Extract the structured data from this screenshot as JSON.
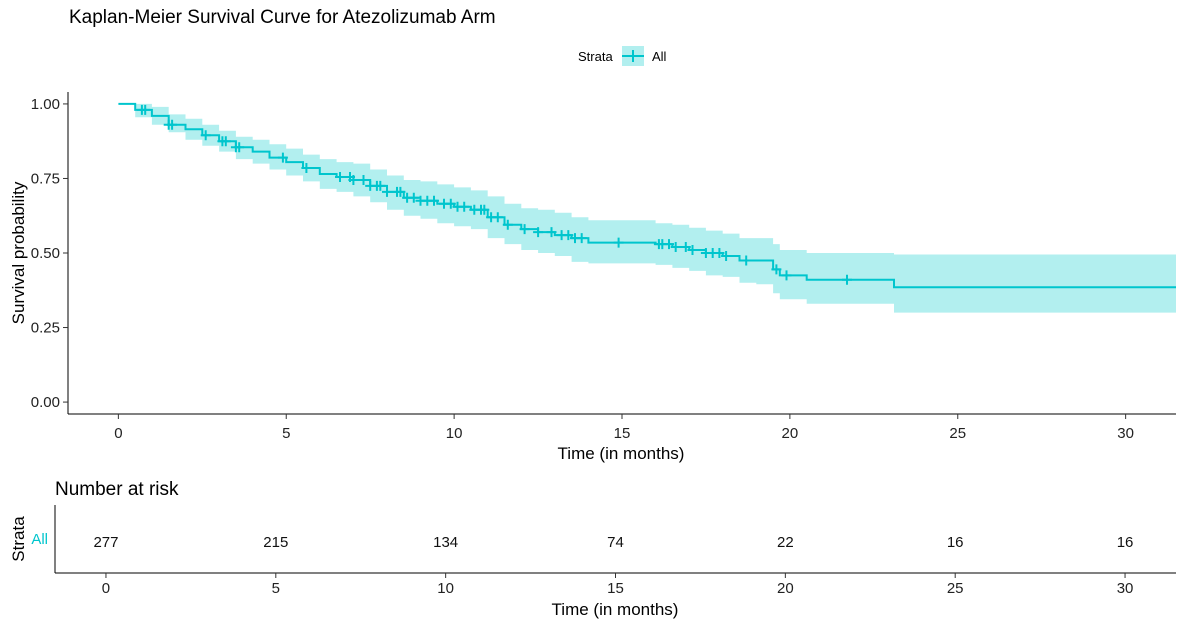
{
  "title": "Kaplan-Meier Survival Curve for Atezolizumab Arm",
  "legend": {
    "title": "Strata",
    "label": "All",
    "placement": "top"
  },
  "colors": {
    "line": "#00C5CD",
    "band": "#B2EFEF",
    "axis": "#000000"
  },
  "chart_data": {
    "type": "line",
    "subtype": "kaplan-meier step",
    "title": "Kaplan-Meier Survival Curve for Atezolizumab Arm",
    "xlabel": "Time (in months)",
    "ylabel": "Survival probability",
    "xlim": [
      -1.5,
      31.5
    ],
    "ylim": [
      -0.04,
      1.04
    ],
    "x_ticks": [
      0,
      5,
      10,
      15,
      20,
      25,
      30
    ],
    "x_tick_labels": [
      "0",
      "5",
      "10",
      "15",
      "20",
      "25",
      "30"
    ],
    "y_ticks": [
      0,
      0.25,
      0.5,
      0.75,
      1.0
    ],
    "y_tick_labels": [
      "0.00",
      "0.25",
      "0.50",
      "0.75",
      "1.00"
    ],
    "grid": false,
    "series": [
      {
        "name": "All",
        "x": [
          0,
          0.5,
          1,
          1.5,
          2,
          2.5,
          3,
          3.5,
          4,
          4.5,
          5,
          5.5,
          6,
          6.5,
          7,
          7.5,
          8,
          8.5,
          9,
          9.5,
          10,
          10.5,
          11,
          11.5,
          12,
          12.5,
          13,
          13.5,
          14,
          15,
          16,
          16.5,
          17,
          17.5,
          18,
          18.5,
          19,
          19.5,
          19.7,
          20.5,
          21.5,
          23.1,
          31.5
        ],
        "y": [
          1.0,
          0.98,
          0.96,
          0.93,
          0.915,
          0.895,
          0.875,
          0.855,
          0.84,
          0.82,
          0.805,
          0.785,
          0.765,
          0.755,
          0.745,
          0.725,
          0.705,
          0.685,
          0.675,
          0.665,
          0.655,
          0.645,
          0.62,
          0.595,
          0.58,
          0.57,
          0.56,
          0.55,
          0.535,
          0.535,
          0.53,
          0.52,
          0.51,
          0.5,
          0.49,
          0.475,
          0.475,
          0.445,
          0.425,
          0.41,
          0.41,
          0.385,
          0.385
        ],
        "lower": [
          1.0,
          0.955,
          0.93,
          0.905,
          0.88,
          0.86,
          0.84,
          0.815,
          0.8,
          0.78,
          0.76,
          0.74,
          0.715,
          0.705,
          0.69,
          0.67,
          0.645,
          0.625,
          0.615,
          0.6,
          0.59,
          0.58,
          0.55,
          0.53,
          0.51,
          0.5,
          0.49,
          0.47,
          0.465,
          0.465,
          0.46,
          0.45,
          0.44,
          0.425,
          0.42,
          0.4,
          0.395,
          0.365,
          0.345,
          0.33,
          0.33,
          0.3,
          0.3
        ],
        "upper": [
          1.0,
          1.0,
          0.99,
          0.965,
          0.95,
          0.93,
          0.91,
          0.89,
          0.88,
          0.865,
          0.85,
          0.83,
          0.815,
          0.805,
          0.8,
          0.78,
          0.76,
          0.745,
          0.74,
          0.73,
          0.72,
          0.71,
          0.69,
          0.665,
          0.65,
          0.645,
          0.635,
          0.62,
          0.61,
          0.61,
          0.6,
          0.595,
          0.585,
          0.575,
          0.565,
          0.55,
          0.55,
          0.53,
          0.51,
          0.5,
          0.5,
          0.495,
          0.495
        ]
      }
    ],
    "censor_times": [
      0.7,
      0.8,
      1.5,
      1.6,
      2.6,
      3.1,
      3.2,
      3.5,
      3.6,
      4.9,
      5.6,
      6.6,
      6.9,
      7.0,
      7.3,
      7.5,
      7.7,
      7.8,
      8.0,
      8.3,
      8.4,
      8.6,
      8.8,
      9.0,
      9.2,
      9.4,
      9.7,
      9.9,
      10.1,
      10.3,
      10.6,
      10.8,
      10.9,
      11.1,
      11.3,
      11.6,
      12.1,
      12.5,
      12.9,
      13.2,
      13.4,
      13.6,
      13.8,
      14.9,
      16.1,
      16.2,
      16.4,
      16.6,
      16.9,
      17.1,
      17.5,
      17.7,
      17.9,
      18.1,
      18.7,
      19.6,
      19.9,
      21.7
    ],
    "risk_table": {
      "title": "Number at risk",
      "ylabel": "Strata",
      "strata_label": "All",
      "times": [
        0,
        5,
        10,
        15,
        20,
        25,
        30
      ],
      "counts": [
        "277",
        "215",
        "134",
        "74",
        "22",
        "16",
        "16"
      ],
      "xlabel": "Time (in months)",
      "x_tick_labels": [
        "0",
        "5",
        "10",
        "15",
        "20",
        "25",
        "30"
      ]
    }
  }
}
